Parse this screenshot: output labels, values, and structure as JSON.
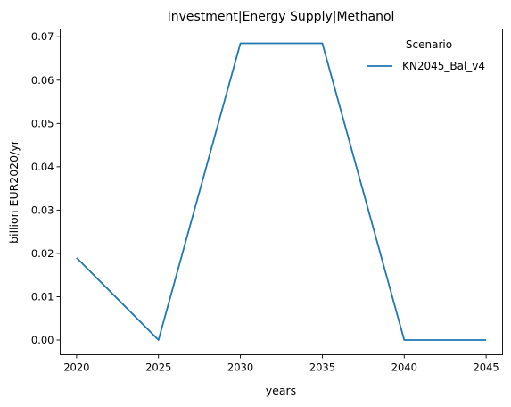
{
  "chart_data": {
    "type": "line",
    "title": "Investment|Energy Supply|Methanol",
    "xlabel": "years",
    "ylabel": "billion EUR2020/yr",
    "x": [
      2020,
      2025,
      2030,
      2035,
      2040,
      2045
    ],
    "x_ticks": [
      "2020",
      "2025",
      "2030",
      "2035",
      "2040",
      "2045"
    ],
    "y_ticks": [
      "0.00",
      "0.01",
      "0.02",
      "0.03",
      "0.04",
      "0.05",
      "0.06",
      "0.07"
    ],
    "xlim": [
      2019,
      2046
    ],
    "ylim": [
      -0.0034,
      0.0718
    ],
    "grid": false,
    "legend": {
      "title": "Scenario",
      "placement": "top-right"
    },
    "series": [
      {
        "name": "KN2045_Bal_v4",
        "color": "#1f77b4",
        "values": [
          0.019,
          0.0,
          0.0685,
          0.0685,
          0.0,
          0.0
        ]
      }
    ]
  }
}
